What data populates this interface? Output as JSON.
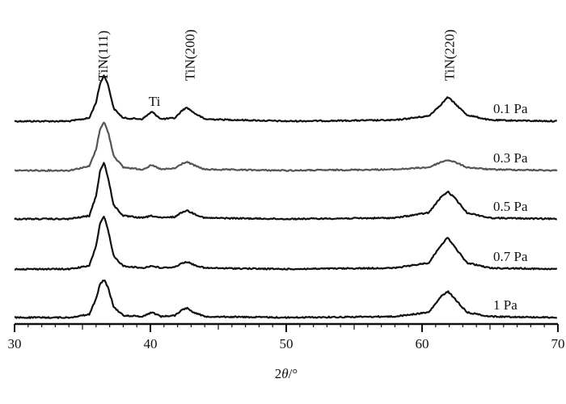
{
  "chart_data": {
    "type": "line",
    "title": "",
    "xlabel": "2θ/°",
    "ylabel": "",
    "xlim": [
      30,
      70
    ],
    "x_ticks": [
      30,
      40,
      50,
      60,
      70
    ],
    "grid": false,
    "series": [
      {
        "name": "0.1 Pa",
        "color": "#111111",
        "x": [
          30,
          34,
          35.5,
          36,
          36.3,
          36.6,
          36.9,
          37.3,
          38,
          39.4,
          40.1,
          40.8,
          41.8,
          42.4,
          42.7,
          43.2,
          44,
          50,
          58,
          60.5,
          61.4,
          61.9,
          62.4,
          63.3,
          65,
          70
        ],
        "y": [
          0,
          0,
          0.3,
          1.8,
          3.6,
          4.4,
          3.4,
          1.2,
          0.3,
          0.2,
          0.9,
          0.2,
          0.3,
          1.1,
          1.3,
          0.8,
          0.2,
          0,
          0.1,
          0.5,
          1.6,
          2.3,
          1.7,
          0.6,
          0.1,
          0
        ]
      },
      {
        "name": "0.3 Pa",
        "color": "#555555",
        "x": [
          30,
          34,
          35.5,
          36,
          36.3,
          36.6,
          36.9,
          37.3,
          38,
          39.4,
          40.1,
          40.8,
          41.8,
          42.4,
          42.7,
          43.2,
          44,
          50,
          58,
          60.5,
          61.4,
          61.9,
          62.4,
          63.3,
          65,
          70
        ],
        "y": [
          0,
          0,
          0.4,
          2.0,
          4.0,
          4.6,
          3.6,
          1.4,
          0.3,
          0.1,
          0.5,
          0.1,
          0.2,
          0.7,
          0.8,
          0.5,
          0.1,
          0,
          0.1,
          0.3,
          0.8,
          1.0,
          0.8,
          0.3,
          0.1,
          0
        ]
      },
      {
        "name": "0.5 Pa",
        "color": "#111111",
        "x": [
          30,
          34,
          35.5,
          36,
          36.3,
          36.6,
          36.9,
          37.3,
          38,
          39.4,
          40.1,
          40.8,
          41.8,
          42.4,
          42.7,
          43.2,
          44,
          50,
          58,
          60.5,
          61.4,
          61.9,
          62.4,
          63.3,
          65,
          70
        ],
        "y": [
          0,
          0,
          0.3,
          2.2,
          4.6,
          5.4,
          3.8,
          1.3,
          0.3,
          0.1,
          0.3,
          0.1,
          0.2,
          0.7,
          0.8,
          0.5,
          0.1,
          0,
          0.1,
          0.6,
          2.1,
          2.6,
          2.0,
          0.6,
          0.1,
          0
        ]
      },
      {
        "name": "0.7 Pa",
        "color": "#111111",
        "x": [
          30,
          34,
          35.5,
          36,
          36.3,
          36.6,
          36.9,
          37.3,
          38,
          39.4,
          40.1,
          40.8,
          41.8,
          42.4,
          42.7,
          43.2,
          44,
          50,
          58,
          60.5,
          61.4,
          61.9,
          62.4,
          63.3,
          65,
          70
        ],
        "y": [
          0,
          0,
          0.3,
          2.2,
          4.4,
          5.0,
          3.6,
          1.2,
          0.3,
          0.1,
          0.3,
          0.1,
          0.2,
          0.6,
          0.7,
          0.4,
          0.1,
          0,
          0.1,
          0.6,
          2.3,
          3.0,
          2.1,
          0.6,
          0.1,
          0
        ]
      },
      {
        "name": "1 Pa",
        "color": "#111111",
        "x": [
          30,
          34,
          35.5,
          36,
          36.3,
          36.6,
          36.9,
          37.3,
          38,
          39.4,
          40.1,
          40.8,
          41.8,
          42.4,
          42.7,
          43.2,
          44,
          50,
          58,
          60.5,
          61.4,
          61.9,
          62.4,
          63.3,
          65,
          70
        ],
        "y": [
          0,
          0,
          0.3,
          1.8,
          3.2,
          3.6,
          2.8,
          1.0,
          0.2,
          0.1,
          0.5,
          0.1,
          0.2,
          0.8,
          0.9,
          0.5,
          0.1,
          0,
          0.1,
          0.5,
          2.0,
          2.5,
          1.8,
          0.5,
          0.1,
          0
        ]
      }
    ],
    "annotations": [
      {
        "text": "TiN(111)",
        "x": 36.5,
        "rotated": true
      },
      {
        "text": "Ti",
        "x": 40.3,
        "rotated": false
      },
      {
        "text": "TiN(200)",
        "x": 42.9,
        "rotated": true
      },
      {
        "text": "TiN(220)",
        "x": 62.0,
        "rotated": true
      }
    ]
  }
}
